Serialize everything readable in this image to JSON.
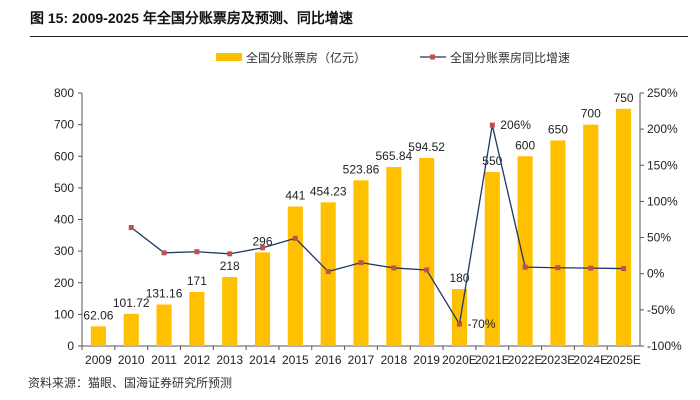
{
  "title": "图 15:  2009-2025 年全国分账票房及预测、同比增速",
  "source": "资料来源：猫眼、国海证券研究所预测",
  "colors": {
    "bar": "#FFC000",
    "line": "#1F3864",
    "marker": "#C0504D"
  },
  "chart_data": {
    "type": "bar+line",
    "categories": [
      "2009",
      "2010",
      "2011",
      "2012",
      "2013",
      "2014",
      "2015",
      "2016",
      "2017",
      "2018",
      "2019",
      "2020E",
      "2021E",
      "2022E",
      "2023E",
      "2024E",
      "2025E"
    ],
    "series": [
      {
        "name": "全国分账票房（亿元）",
        "type": "bar",
        "axis": "left",
        "values": [
          62.06,
          101.72,
          131.16,
          171,
          218,
          296,
          441,
          454.23,
          523.86,
          565.84,
          594.52,
          180,
          550,
          600,
          650,
          700,
          750
        ],
        "labels": [
          "62.06",
          "101.72",
          "131.16",
          "171",
          "218",
          "296",
          "441",
          "454.23",
          "523.86",
          "565.84",
          "594.52",
          "180",
          "550",
          "600",
          "650",
          "700",
          "750"
        ]
      },
      {
        "name": "全国分账票房同比增速",
        "type": "line",
        "axis": "right",
        "values": [
          null,
          63.9,
          28.9,
          30.4,
          27.5,
          35.8,
          49.0,
          3.0,
          15.3,
          8.0,
          5.1,
          -69.7,
          205.6,
          9.1,
          8.3,
          7.7,
          7.1
        ],
        "labels": {
          "11": "-70%",
          "12": "206%"
        }
      }
    ],
    "left_axis": {
      "min": 0,
      "max": 800,
      "ticks": [
        "0",
        "100",
        "200",
        "300",
        "400",
        "500",
        "600",
        "700",
        "800"
      ]
    },
    "right_axis": {
      "min": -100,
      "max": 250,
      "ticks": [
        "-100%",
        "-50%",
        "0%",
        "50%",
        "100%",
        "150%",
        "200%",
        "250%"
      ]
    },
    "legend": "top-center",
    "grid": false
  }
}
